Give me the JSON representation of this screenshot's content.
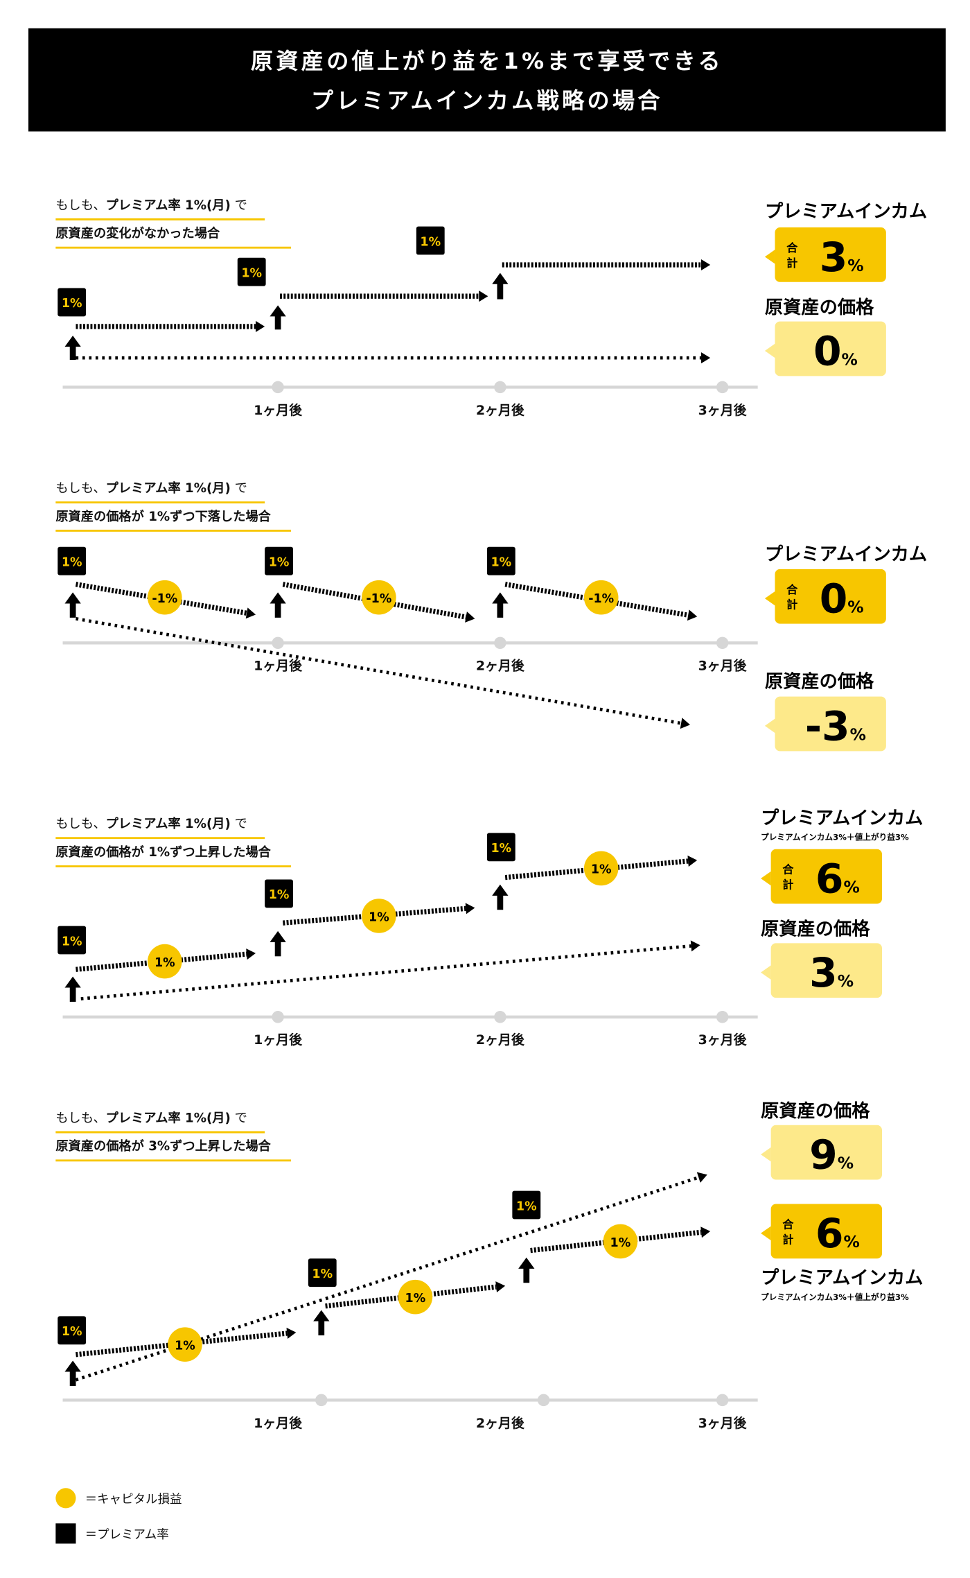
{
  "header": {
    "title_line1": "原資産の値上がり益を1%まで享受できる",
    "title_line2": "プレミアムインカム戦略の場合"
  },
  "colors": {
    "header_bg": "#000000",
    "accent_yellow": "#f7c600",
    "light_yellow": "#fde98a",
    "axis_gray": "#d6d6d6"
  },
  "axis_labels": [
    "1ヶ月後",
    "2ヶ月後",
    "3ヶ月後"
  ],
  "scenarios": [
    {
      "caption_prefix": "もしも、",
      "caption_bold": "プレミアム率 1%(月)",
      "caption_suffix": " で",
      "caption_line2": "原資産の変化がなかった場合",
      "premium_badges": [
        "1%",
        "1%",
        "1%"
      ],
      "capital_labels": [],
      "income_title": "プレミアムインカム",
      "income_sub": "",
      "total_label": [
        "合",
        "計"
      ],
      "income_value": "3",
      "unit": "%",
      "price_title": "原資産の価格",
      "price_value": "0"
    },
    {
      "caption_prefix": "もしも、",
      "caption_bold": "プレミアム率 1%(月)",
      "caption_suffix": " で",
      "caption_line2": "原資産の価格が 1%ずつ下落した場合",
      "premium_badges": [
        "1%",
        "1%",
        "1%"
      ],
      "capital_labels": [
        "-1%",
        "-1%",
        "-1%"
      ],
      "income_title": "プレミアムインカム",
      "income_sub": "",
      "total_label": [
        "合",
        "計"
      ],
      "income_value": "0",
      "unit": "%",
      "price_title": "原資産の価格",
      "price_value": "-3"
    },
    {
      "caption_prefix": "もしも、",
      "caption_bold": "プレミアム率 1%(月)",
      "caption_suffix": " で",
      "caption_line2": "原資産の価格が 1%ずつ上昇した場合",
      "premium_badges": [
        "1%",
        "1%",
        "1%"
      ],
      "capital_labels": [
        "1%",
        "1%",
        "1%"
      ],
      "income_title": "プレミアムインカム",
      "income_sub": "プレミアムインカム3%＋値上がり益3%",
      "total_label": [
        "合",
        "計"
      ],
      "income_value": "6",
      "unit": "%",
      "price_title": "原資産の価格",
      "price_value": "3"
    },
    {
      "caption_prefix": "もしも、",
      "caption_bold": "プレミアム率 1%(月)",
      "caption_suffix": " で",
      "caption_line2": "原資産の価格が 3%ずつ上昇した場合",
      "premium_badges": [
        "1%",
        "1%",
        "1%"
      ],
      "capital_labels": [
        "1%",
        "1%",
        "1%"
      ],
      "income_title": "プレミアムインカム",
      "income_sub": "プレミアムインカム3%＋値上がり益3%",
      "total_label": [
        "合",
        "計"
      ],
      "income_value": "6",
      "unit": "%",
      "price_title": "原資産の価格",
      "price_value": "9"
    }
  ],
  "legend": {
    "capital": "＝キャピタル損益",
    "premium": "＝プレミアム率"
  }
}
